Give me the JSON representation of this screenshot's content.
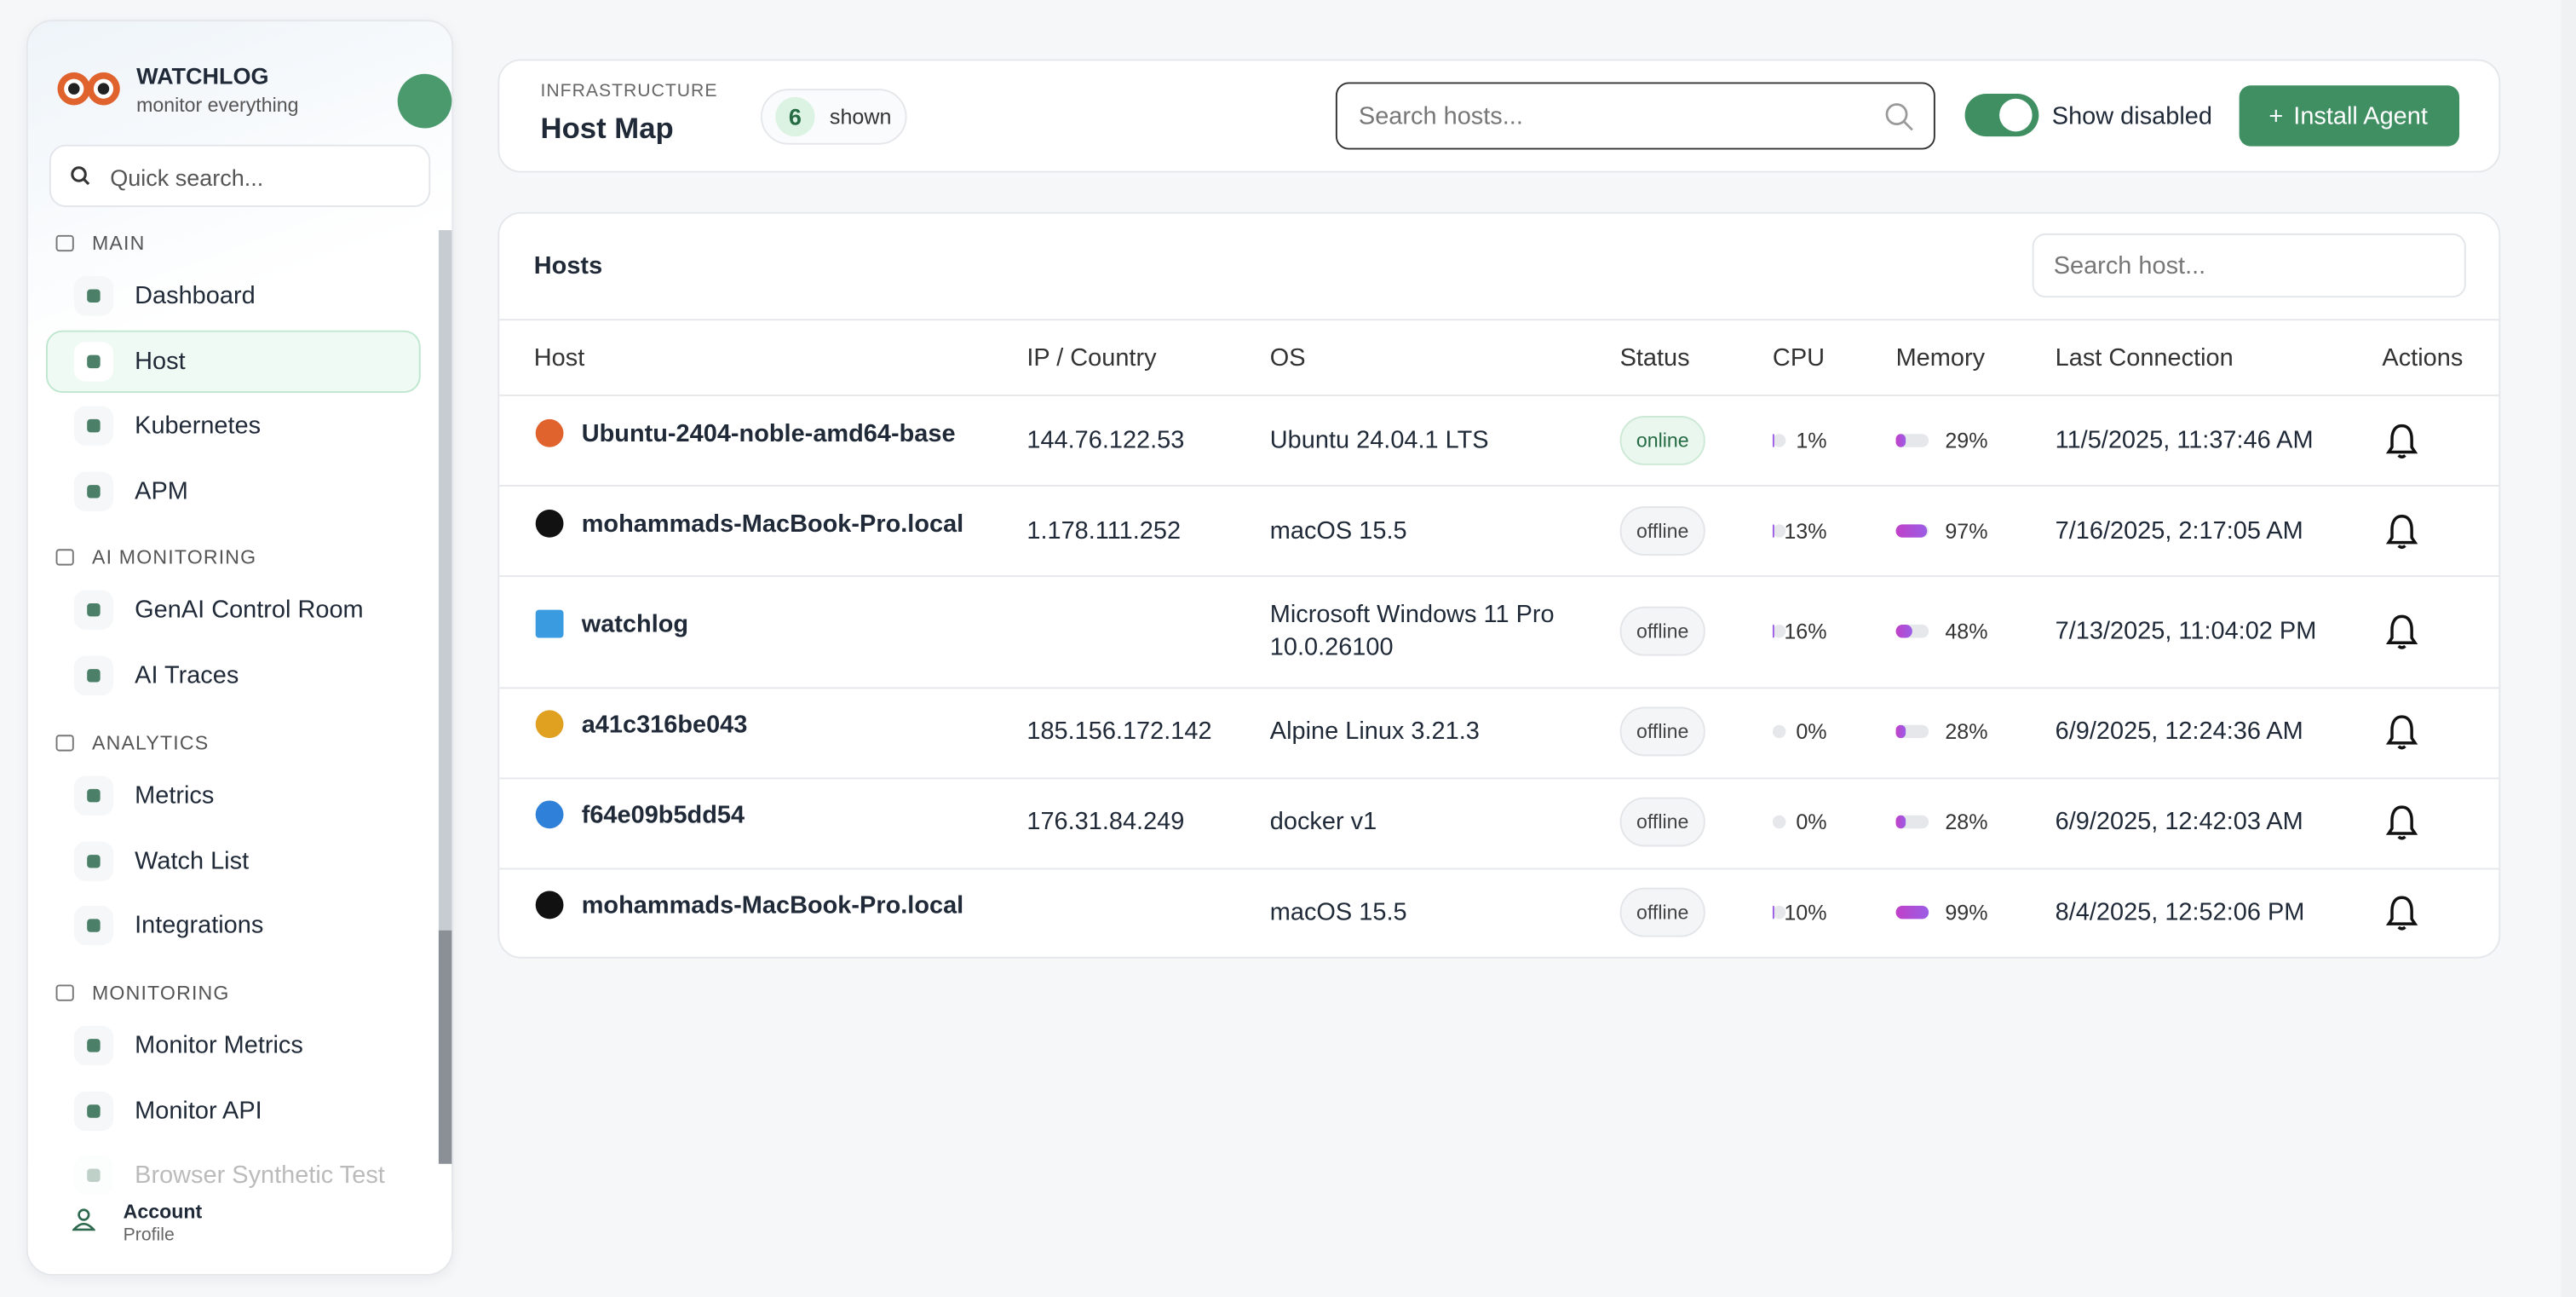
{
  "sidebar": {
    "brand": "WATCHLOG",
    "tagline": "monitor everything",
    "search_placeholder": "Quick search...",
    "sections": [
      {
        "title": "MAIN",
        "items": [
          "Dashboard",
          "Host",
          "Kubernetes",
          "APM"
        ]
      },
      {
        "title": "AI MONITORING",
        "items": [
          "GenAI Control Room",
          "AI Traces"
        ]
      },
      {
        "title": "ANALYTICS",
        "items": [
          "Metrics",
          "Watch List",
          "Integrations"
        ]
      },
      {
        "title": "MONITORING",
        "items": [
          "Monitor Metrics",
          "Monitor API",
          "Browser Synthetic Test"
        ]
      }
    ],
    "account": {
      "title": "Account",
      "subtitle": "Profile"
    }
  },
  "header": {
    "eyebrow": "INFRASTRUCTURE",
    "title": "Host Map",
    "count": 6,
    "count_label": "shown",
    "search_placeholder": "Search hosts...",
    "toggle_label": "Show disabled",
    "button": "Install Agent"
  },
  "table": {
    "title": "Hosts",
    "search_placeholder": "Search host...",
    "columns": [
      "Host",
      "IP / Country",
      "OS",
      "Status",
      "CPU",
      "Memory",
      "Last Connection",
      "Actions"
    ],
    "rows": [
      {
        "host": "Ubuntu-2404-noble-amd64-base",
        "ip": "144.76.122.53",
        "os": [
          "Ubuntu 24.04.1 LTS"
        ],
        "status": "online",
        "cpu": {
          "value": 1,
          "label": "1%"
        },
        "memory": {
          "value": 29,
          "label": "29%"
        },
        "last": "11/5/2025, 11:37:46 AM"
      },
      {
        "host": "mohammads-MacBook-Pro.local",
        "ip": "1.178.111.252",
        "os": [
          "macOS 15.5"
        ],
        "status": "offline",
        "cpu": {
          "value": 13,
          "label": "13%"
        },
        "memory": {
          "value": 97,
          "label": "97%"
        },
        "last": "7/16/2025, 2:17:05 AM"
      },
      {
        "host": "watchlog",
        "ip": null,
        "os": [
          "Microsoft Windows 11 Pro",
          "10.0.26100"
        ],
        "status": "offline",
        "cpu": {
          "value": 16,
          "label": "16%"
        },
        "memory": {
          "value": 48,
          "label": "48%"
        },
        "last": "7/13/2025, 11:04:02 PM"
      },
      {
        "host": "a41c316be043",
        "ip": "185.156.172.142",
        "os": [
          "Alpine Linux 3.21.3"
        ],
        "status": "offline",
        "cpu": {
          "value": 0,
          "label": "0%"
        },
        "memory": {
          "value": 28,
          "label": "28%"
        },
        "last": "6/9/2025, 12:24:36 AM"
      },
      {
        "host": "f64e09b5dd54",
        "ip": "176.31.84.249",
        "os": [
          "docker v1"
        ],
        "status": "offline",
        "cpu": {
          "value": 0,
          "label": "0%"
        },
        "memory": {
          "value": 28,
          "label": "28%"
        },
        "last": "6/9/2025, 12:42:03 AM"
      },
      {
        "host": "mohammads-MacBook-Pro.local",
        "ip": null,
        "os": [
          "macOS 15.5"
        ],
        "status": "offline",
        "cpu": {
          "value": 10,
          "label": "10%"
        },
        "memory": {
          "value": 99,
          "label": "99%"
        },
        "last": "8/4/2025, 12:52:06 PM"
      }
    ]
  }
}
